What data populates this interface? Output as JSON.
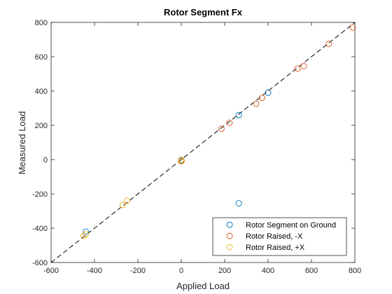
{
  "chart_data": {
    "type": "scatter",
    "title": "Rotor Segment Fx",
    "xlabel": "Applied Load",
    "ylabel": "Measured Load",
    "xlim": [
      -600,
      800
    ],
    "ylim": [
      -600,
      800
    ],
    "xticks": [
      -600,
      -400,
      -200,
      0,
      200,
      400,
      600,
      800
    ],
    "yticks": [
      -600,
      -400,
      -200,
      0,
      200,
      400,
      600,
      800
    ],
    "grid": false,
    "legend_position": "bottom-right",
    "reference_line": {
      "style": "dashed",
      "color": "#000000",
      "x": [
        -600,
        800
      ],
      "y": [
        -600,
        800
      ]
    },
    "series": [
      {
        "name": "Rotor Segment on Ground",
        "color": "#0072BD",
        "marker": "circle-open",
        "points": [
          [
            -440,
            -420
          ],
          [
            0,
            -5
          ],
          [
            265,
            260
          ],
          [
            400,
            390
          ],
          [
            265,
            -255
          ]
        ]
      },
      {
        "name": "Rotor Raised, -X",
        "color": "#D95319",
        "marker": "circle-open",
        "points": [
          [
            0,
            -10
          ],
          [
            185,
            180
          ],
          [
            222,
            215
          ],
          [
            345,
            325
          ],
          [
            372,
            360
          ],
          [
            535,
            530
          ],
          [
            565,
            545
          ],
          [
            680,
            675
          ],
          [
            790,
            770
          ]
        ]
      },
      {
        "name": "Rotor Raised, +X",
        "color": "#EDB120",
        "marker": "circle-open",
        "points": [
          [
            -450,
            -445
          ],
          [
            -440,
            -435
          ],
          [
            -270,
            -265
          ],
          [
            -250,
            -240
          ],
          [
            0,
            0
          ],
          [
            2,
            -8
          ]
        ]
      }
    ]
  }
}
